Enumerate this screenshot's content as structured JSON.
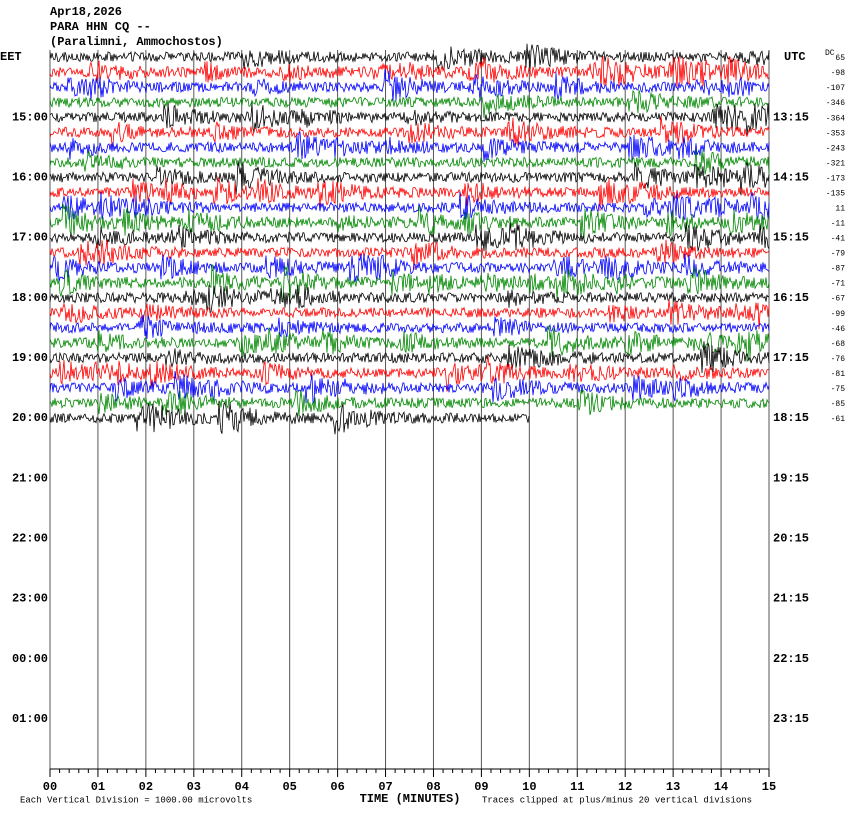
{
  "header": {
    "date": "Apr18,2026",
    "station": "PARA HHN CQ --",
    "location": "(Paralimni, Ammochostos)"
  },
  "left_zone": "EET",
  "right_zone": "UTC",
  "dc_label": "DC",
  "left_times": [
    "15:00",
    "16:00",
    "17:00",
    "18:00",
    "19:00",
    "20:00",
    "21:00",
    "22:00",
    "23:00",
    "00:00",
    "01:00"
  ],
  "right_times": [
    "13:15",
    "14:15",
    "15:15",
    "16:15",
    "17:15",
    "18:15",
    "19:15",
    "20:15",
    "21:15",
    "22:15",
    "23:15"
  ],
  "dc_offsets": [
    65,
    -98,
    -107,
    -346,
    -364,
    -353,
    -243,
    -321,
    -173,
    -135,
    11,
    -11,
    -41,
    -79,
    -87,
    -71,
    -67,
    -99,
    -46,
    -68,
    -76,
    -81,
    -75,
    -85,
    -61
  ],
  "x_labels": [
    "00",
    "01",
    "02",
    "03",
    "04",
    "05",
    "06",
    "07",
    "08",
    "09",
    "10",
    "11",
    "12",
    "13",
    "14",
    "15"
  ],
  "x_axis_title": "TIME (MINUTES)",
  "footer_left": "Each Vertical Division = 1000.00 microvolts",
  "footer_right": "Traces clipped at plus/minus 20 vertical divisions"
}
